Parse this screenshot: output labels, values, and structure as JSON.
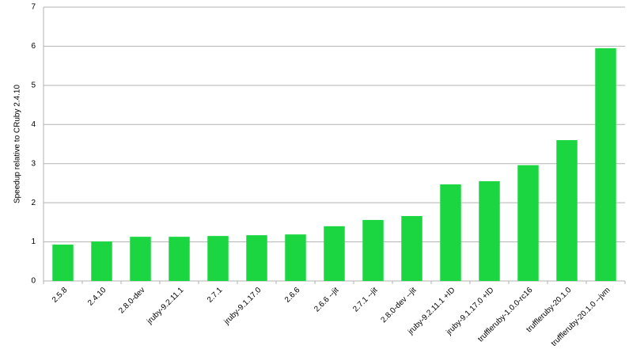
{
  "chart_data": {
    "type": "bar",
    "y_label": "Speedup relative to CRuby 2.4.10",
    "categories": [
      "2.5.8",
      "2.4.10",
      "2.8.0-dev",
      "jruby-9.2.11.1",
      "2.7.1",
      "jruby-9.1.17.0",
      "2.6.6",
      "2.6.6 --jit",
      "2.7.1 --jit",
      "2.8.0-dev --jit",
      "jruby-9.2.11.1 +ID",
      "jruby-9.1.17.0 +ID",
      "truffleruby-1.0.0-rc16",
      "truffleruby-20.1.0",
      "truffleruby-20.1.0 --jvm"
    ],
    "values": [
      0.93,
      1.01,
      1.13,
      1.13,
      1.15,
      1.17,
      1.19,
      1.4,
      1.56,
      1.66,
      2.47,
      2.55,
      2.96,
      3.6,
      5.95
    ],
    "color": "#1bd641",
    "ylim": [
      0,
      7
    ],
    "yticks": [
      0,
      1,
      2,
      3,
      4,
      5,
      6,
      7
    ],
    "grid": true
  }
}
